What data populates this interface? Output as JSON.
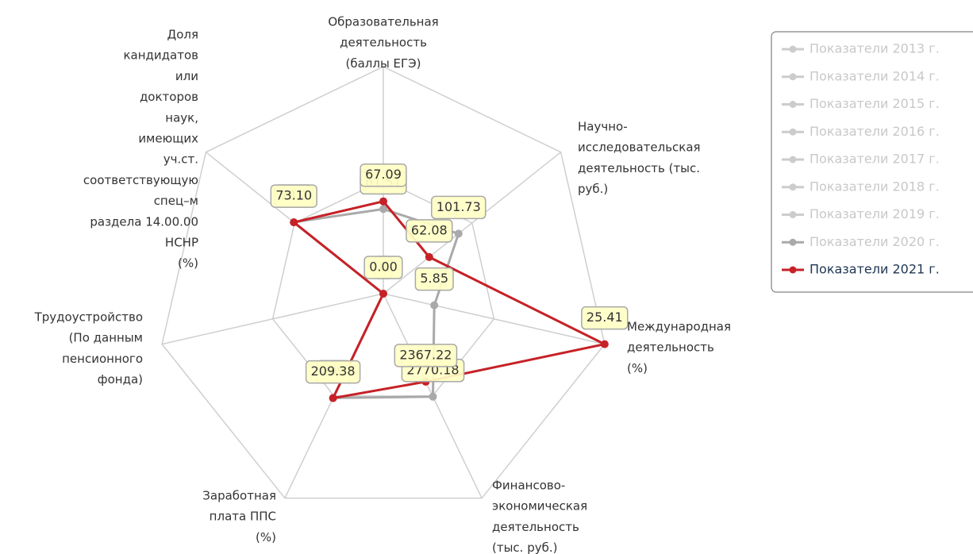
{
  "chart_data": {
    "type": "radar",
    "axes": [
      {
        "label": [
          "Образовательная",
          "деятельность",
          "(баллы ЕГЭ)"
        ],
        "lim": [
          0,
          165
        ]
      },
      {
        "label": [
          "Научно-",
          "исследовательская",
          "деятельность (тыс.",
          "руб.)"
        ],
        "lim": [
          0,
          240
        ]
      },
      {
        "label": [
          "Международная",
          "деятельность",
          "(%)"
        ],
        "lim": [
          0,
          25.41
        ]
      },
      {
        "label": [
          "Финансово-",
          "экономическая",
          "деятельность",
          "(тыс. руб.)"
        ],
        "lim": [
          0,
          5500
        ]
      },
      {
        "label": [
          "Заработная",
          "плата ППС",
          "(%)"
        ],
        "lim": [
          0,
          410
        ]
      },
      {
        "label": [
          "Трудоустройство",
          "(По данным",
          "пенсионного",
          "фонда)"
        ],
        "lim": [
          0,
          100
        ]
      },
      {
        "label": [
          "Доля",
          "кандидатов",
          "или",
          "докторов",
          "наук,",
          "имеющих",
          "уч.ст.",
          "соответствующую",
          "спец–м",
          "раздела 14.00.00",
          "НСНР",
          "(%)"
        ],
        "lim": [
          0,
          145
        ]
      }
    ],
    "grid": true,
    "legend": "top-right",
    "series": [
      {
        "name": "Показатели 2013 г.",
        "color": "#cccccc",
        "values": [
          null,
          null,
          null,
          null,
          null,
          null,
          null
        ]
      },
      {
        "name": "Показатели 2014 г.",
        "color": "#cccccc",
        "values": [
          null,
          null,
          null,
          null,
          null,
          null,
          null
        ]
      },
      {
        "name": "Показатели 2015 г.",
        "color": "#cccccc",
        "values": [
          null,
          null,
          null,
          null,
          null,
          null,
          null
        ]
      },
      {
        "name": "Показатели 2016 г.",
        "color": "#cccccc",
        "values": [
          null,
          null,
          null,
          null,
          null,
          null,
          null
        ]
      },
      {
        "name": "Показатели 2017 г.",
        "color": "#cccccc",
        "values": [
          null,
          null,
          null,
          null,
          null,
          null,
          null
        ]
      },
      {
        "name": "Показатели 2018 г.",
        "color": "#cccccc",
        "values": [
          null,
          null,
          null,
          null,
          null,
          null,
          null
        ]
      },
      {
        "name": "Показатели 2019 г.",
        "color": "#cccccc",
        "values": [
          null,
          null,
          null,
          null,
          null,
          null,
          null
        ]
      },
      {
        "name": "Показатели 2020 г.",
        "color": "#a9a9a9",
        "values": [
          61.51,
          101.73,
          5.85,
          2770.18,
          209,
          0,
          73.2
        ]
      },
      {
        "name": "Показатели 2021 г.",
        "color": "#c62127",
        "values": [
          67.09,
          62.08,
          25.41,
          2367.22,
          209.38,
          0,
          73.1
        ],
        "value_labels": [
          "67.09",
          "62.08",
          "25.41",
          "2367.22",
          "209.38",
          "0.00",
          "73.10"
        ]
      }
    ]
  }
}
